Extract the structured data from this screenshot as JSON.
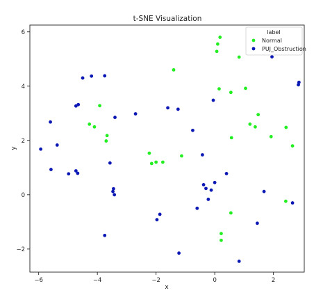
{
  "chart_data": {
    "type": "scatter",
    "title": "t-SNE Visualization",
    "xlabel": "x",
    "ylabel": "y",
    "xlim": [
      -6.3,
      3.05
    ],
    "ylim": [
      -2.85,
      6.25
    ],
    "x_ticks": [
      -6,
      -4,
      -2,
      0,
      2
    ],
    "y_ticks": [
      -2,
      0,
      2,
      4,
      6
    ],
    "grid": false,
    "legend": {
      "title": "label",
      "placement": "top-right"
    },
    "series": [
      {
        "name": "Normal",
        "color": "#22ee22",
        "points": [
          [
            0.18,
            5.8
          ],
          [
            0.1,
            5.55
          ],
          [
            0.07,
            5.28
          ],
          [
            0.83,
            5.07
          ],
          [
            -1.4,
            4.6
          ],
          [
            0.15,
            3.9
          ],
          [
            1.05,
            3.92
          ],
          [
            0.55,
            3.77
          ],
          [
            -3.92,
            3.28
          ],
          [
            1.48,
            2.95
          ],
          [
            -4.27,
            2.6
          ],
          [
            1.2,
            2.6
          ],
          [
            -4.1,
            2.5
          ],
          [
            1.38,
            2.5
          ],
          [
            2.43,
            2.48
          ],
          [
            -3.67,
            2.18
          ],
          [
            0.57,
            2.1
          ],
          [
            1.92,
            2.14
          ],
          [
            -3.7,
            1.98
          ],
          [
            2.65,
            1.8
          ],
          [
            -2.23,
            1.53
          ],
          [
            -1.13,
            1.43
          ],
          [
            -2.15,
            1.15
          ],
          [
            -2.0,
            1.2
          ],
          [
            -1.77,
            1.2
          ],
          [
            2.42,
            -0.24
          ],
          [
            0.55,
            -0.67
          ],
          [
            0.22,
            -1.43
          ],
          [
            0.22,
            -1.68
          ]
        ]
      },
      {
        "name": "PUJ_Obstruction",
        "color": "#0b18b4",
        "points": [
          [
            1.95,
            5.08
          ],
          [
            -4.5,
            4.3
          ],
          [
            -4.2,
            4.37
          ],
          [
            -3.75,
            4.38
          ],
          [
            2.85,
            4.05
          ],
          [
            2.87,
            4.14
          ],
          [
            -0.05,
            3.48
          ],
          [
            -4.65,
            3.32
          ],
          [
            -4.73,
            3.27
          ],
          [
            -1.6,
            3.2
          ],
          [
            -1.25,
            3.15
          ],
          [
            -2.7,
            2.98
          ],
          [
            -3.4,
            2.85
          ],
          [
            -5.6,
            2.68
          ],
          [
            -0.75,
            2.37
          ],
          [
            -5.37,
            1.83
          ],
          [
            -5.93,
            1.68
          ],
          [
            -0.42,
            1.47
          ],
          [
            -3.57,
            1.17
          ],
          [
            -5.58,
            0.93
          ],
          [
            -4.73,
            0.88
          ],
          [
            -4.67,
            0.79
          ],
          [
            -4.98,
            0.77
          ],
          [
            0.4,
            0.78
          ],
          [
            0.0,
            0.45
          ],
          [
            -0.38,
            0.37
          ],
          [
            -3.45,
            0.22
          ],
          [
            -0.3,
            0.23
          ],
          [
            -3.47,
            0.12
          ],
          [
            -0.12,
            0.17
          ],
          [
            1.68,
            0.12
          ],
          [
            -3.42,
            0.0
          ],
          [
            -0.22,
            -0.17
          ],
          [
            2.65,
            -0.3
          ],
          [
            -0.6,
            -0.5
          ],
          [
            -1.87,
            -0.72
          ],
          [
            -1.97,
            -0.92
          ],
          [
            1.45,
            -1.05
          ],
          [
            -3.75,
            -1.5
          ],
          [
            -1.22,
            -2.15
          ],
          [
            0.83,
            -2.45
          ]
        ]
      }
    ]
  }
}
